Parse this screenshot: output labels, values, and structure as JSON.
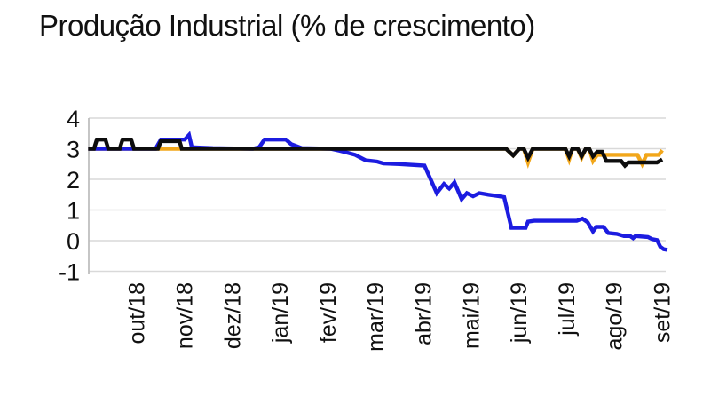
{
  "chart_data": {
    "type": "line",
    "title": "Produção Industrial (% de crescimento)",
    "xlabel": "",
    "ylabel": "",
    "legend": "none",
    "grid": "horizontal",
    "ylim": [
      -1,
      4
    ],
    "y_ticks": [
      4,
      3,
      2,
      1,
      0,
      -1
    ],
    "x_tick_labels": [
      "out/18",
      "nov/18",
      "dez/18",
      "jan/19",
      "fev/19",
      "mar/19",
      "abr/19",
      "mai/19",
      "jun/19",
      "jul/19",
      "ago/19",
      "set/19"
    ],
    "x_axis_note": "x values below are month indexes: 1=out/18 ... 12=set/19, weekly points",
    "colors": {
      "grid": "#d9d9d9",
      "axis": "#bfbfbf",
      "text": "#111111"
    },
    "series": [
      {
        "name": "linha-laranja",
        "color": "#f2a71b",
        "points": [
          [
            0,
            3
          ],
          [
            8.75,
            3
          ],
          [
            8.9,
            2.78
          ],
          [
            9.03,
            3
          ],
          [
            9.12,
            3
          ],
          [
            9.21,
            2.55
          ],
          [
            9.31,
            3
          ],
          [
            9.99,
            3
          ],
          [
            10.07,
            2.65
          ],
          [
            10.14,
            3
          ],
          [
            10.25,
            3
          ],
          [
            10.33,
            2.7
          ],
          [
            10.42,
            3
          ],
          [
            10.49,
            3
          ],
          [
            10.57,
            2.6
          ],
          [
            10.66,
            2.8
          ],
          [
            11.5,
            2.8
          ],
          [
            11.6,
            2.5
          ],
          [
            11.69,
            2.8
          ],
          [
            11.95,
            2.8
          ],
          [
            12.02,
            2.95
          ]
        ]
      },
      {
        "name": "linha-azul",
        "color": "#1c1ce0",
        "points": [
          [
            0,
            3
          ],
          [
            1.41,
            3
          ],
          [
            1.52,
            3.3
          ],
          [
            1.91,
            3.3
          ],
          [
            2.02,
            3.3
          ],
          [
            2.11,
            3.45
          ],
          [
            2.17,
            3.05
          ],
          [
            2.61,
            3.02
          ],
          [
            3.45,
            3
          ],
          [
            3.58,
            3.05
          ],
          [
            3.69,
            3.3
          ],
          [
            4.14,
            3.3
          ],
          [
            4.25,
            3.15
          ],
          [
            4.47,
            3.02
          ],
          [
            5.07,
            3
          ],
          [
            5.22,
            2.95
          ],
          [
            5.4,
            2.88
          ],
          [
            5.59,
            2.8
          ],
          [
            5.81,
            2.62
          ],
          [
            6.05,
            2.58
          ],
          [
            6.18,
            2.52
          ],
          [
            6.52,
            2.5
          ],
          [
            7.04,
            2.45
          ],
          [
            7.3,
            1.55
          ],
          [
            7.45,
            1.85
          ],
          [
            7.56,
            1.7
          ],
          [
            7.67,
            1.9
          ],
          [
            7.82,
            1.35
          ],
          [
            7.93,
            1.55
          ],
          [
            8.06,
            1.45
          ],
          [
            8.19,
            1.55
          ],
          [
            8.38,
            1.5
          ],
          [
            8.6,
            1.45
          ],
          [
            8.71,
            1.42
          ],
          [
            8.86,
            0.42
          ],
          [
            9.16,
            0.42
          ],
          [
            9.21,
            0.62
          ],
          [
            9.34,
            0.65
          ],
          [
            10.23,
            0.65
          ],
          [
            10.35,
            0.72
          ],
          [
            10.46,
            0.6
          ],
          [
            10.57,
            0.3
          ],
          [
            10.64,
            0.45
          ],
          [
            10.79,
            0.45
          ],
          [
            10.89,
            0.25
          ],
          [
            11.07,
            0.22
          ],
          [
            11.22,
            0.15
          ],
          [
            11.35,
            0.15
          ],
          [
            11.41,
            0.08
          ],
          [
            11.46,
            0.15
          ],
          [
            11.72,
            0.12
          ],
          [
            11.81,
            0.05
          ],
          [
            11.91,
            0.02
          ],
          [
            11.98,
            -0.2
          ],
          [
            12.05,
            -0.28
          ],
          [
            12.13,
            -0.3
          ]
        ]
      },
      {
        "name": "linha-preta",
        "color": "#0d0d0d",
        "points": [
          [
            0,
            3
          ],
          [
            0.12,
            3
          ],
          [
            0.18,
            3.3
          ],
          [
            0.36,
            3.3
          ],
          [
            0.42,
            3
          ],
          [
            0.66,
            3
          ],
          [
            0.72,
            3.3
          ],
          [
            0.9,
            3.3
          ],
          [
            0.96,
            3
          ],
          [
            1.46,
            3
          ],
          [
            1.52,
            3.25
          ],
          [
            1.91,
            3.25
          ],
          [
            1.96,
            3
          ],
          [
            8.75,
            3
          ],
          [
            8.9,
            2.78
          ],
          [
            9.03,
            3
          ],
          [
            9.12,
            3
          ],
          [
            9.21,
            2.7
          ],
          [
            9.31,
            3
          ],
          [
            9.99,
            3
          ],
          [
            10.07,
            2.75
          ],
          [
            10.14,
            3
          ],
          [
            10.25,
            3
          ],
          [
            10.33,
            2.75
          ],
          [
            10.42,
            3
          ],
          [
            10.49,
            3
          ],
          [
            10.57,
            2.75
          ],
          [
            10.66,
            2.9
          ],
          [
            10.76,
            2.9
          ],
          [
            10.85,
            2.6
          ],
          [
            11.16,
            2.6
          ],
          [
            11.24,
            2.45
          ],
          [
            11.31,
            2.55
          ],
          [
            11.91,
            2.55
          ],
          [
            12.02,
            2.65
          ]
        ]
      }
    ]
  }
}
